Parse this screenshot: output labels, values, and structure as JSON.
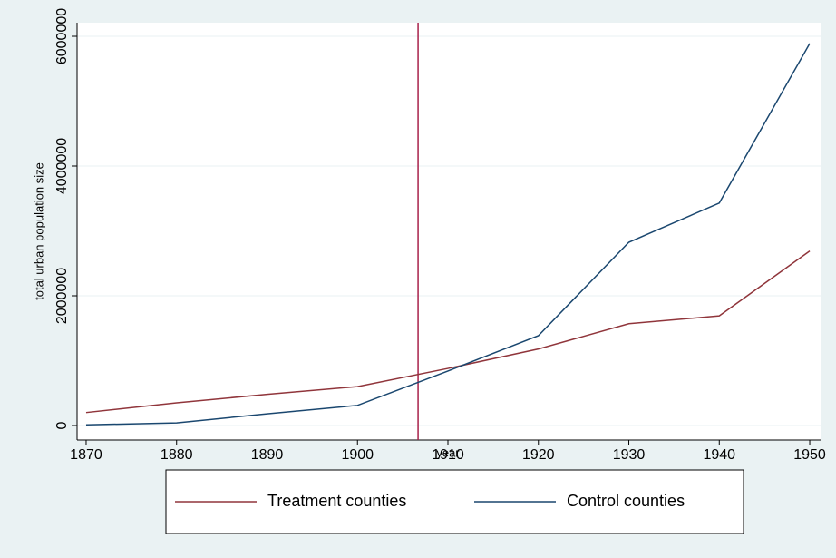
{
  "chart_data": {
    "type": "line",
    "x_label": "year",
    "y_label": "total urban population size",
    "x": [
      1870,
      1880,
      1890,
      1900,
      1910,
      1920,
      1930,
      1940,
      1950
    ],
    "series": [
      {
        "name": "Treatment counties",
        "color": "#90353b",
        "values": [
          200000,
          350000,
          480000,
          600000,
          880000,
          1180000,
          1570000,
          1690000,
          2690000
        ]
      },
      {
        "name": "Control counties",
        "color": "#1a476f",
        "values": [
          10000,
          40000,
          180000,
          310000,
          840000,
          1385000,
          2825000,
          3430000,
          5890000
        ]
      }
    ],
    "xlim": [
      1869,
      1951.2
    ],
    "ylim": [
      -224000,
      6210000
    ],
    "xticks": [
      1870,
      1880,
      1890,
      1900,
      1910,
      1920,
      1930,
      1940,
      1950
    ],
    "yticks": [
      0,
      2000000,
      4000000,
      6000000
    ],
    "vline": 1906.7,
    "vline_color": "#a8204a",
    "grid": true,
    "legend": "bottom"
  }
}
